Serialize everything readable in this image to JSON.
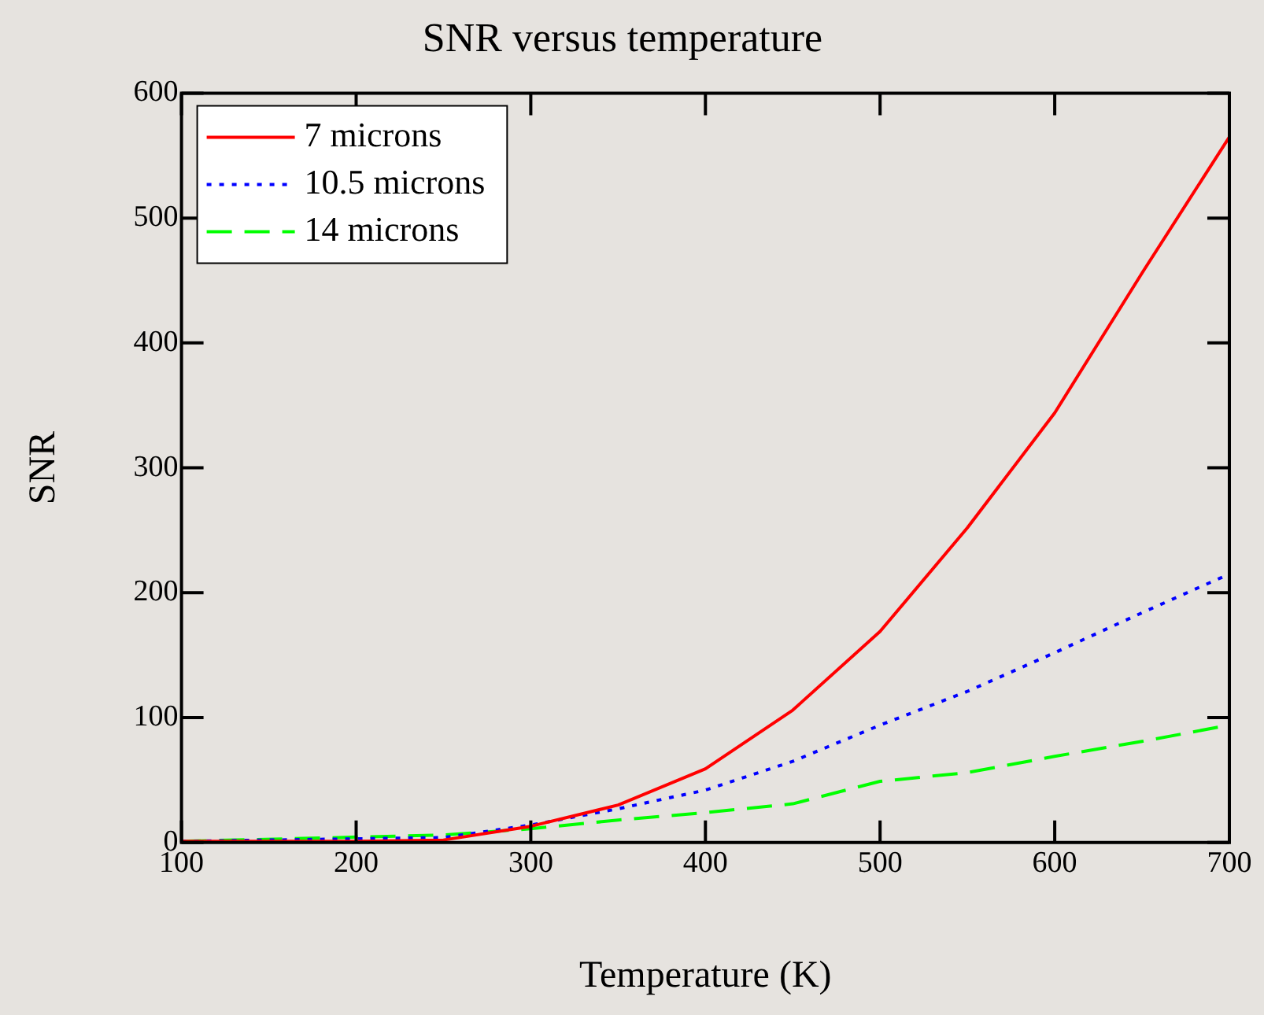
{
  "chart_data": {
    "type": "line",
    "title": "SNR versus temperature",
    "xlabel": "Temperature (K)",
    "ylabel": "SNR",
    "xlim": [
      100,
      700
    ],
    "xticks": [
      100,
      200,
      300,
      400,
      500,
      600,
      700
    ],
    "ylim": [
      0,
      600
    ],
    "yticks": [
      0,
      100,
      200,
      300,
      400,
      500,
      600
    ],
    "grid": false,
    "legend": "top left",
    "marker": "none",
    "series": [
      {
        "name": "7 microns",
        "color": "#ff0000",
        "line_style": "solid",
        "x": [
          100,
          150,
          200,
          250,
          300,
          350,
          400,
          450,
          500,
          550,
          600,
          650,
          700
        ],
        "values": [
          1,
          1,
          1,
          2,
          13,
          30,
          59,
          106,
          169,
          252,
          344,
          456,
          565
        ]
      },
      {
        "name": "10.5 microns",
        "color": "#0000ff",
        "line_style": "dotted",
        "x": [
          100,
          250,
          300,
          350,
          400,
          450,
          500,
          550,
          600,
          650,
          700
        ],
        "values": [
          1,
          4,
          14,
          27,
          42,
          65,
          94,
          121,
          152,
          184,
          215
        ]
      },
      {
        "name": "14 microns",
        "color": "#00ff00",
        "line_style": "dashed",
        "x": [
          100,
          250,
          300,
          350,
          400,
          450,
          500,
          550,
          600,
          650,
          700
        ],
        "values": [
          1,
          6,
          11,
          18,
          24,
          31,
          49,
          56,
          69,
          81,
          94
        ]
      }
    ]
  }
}
